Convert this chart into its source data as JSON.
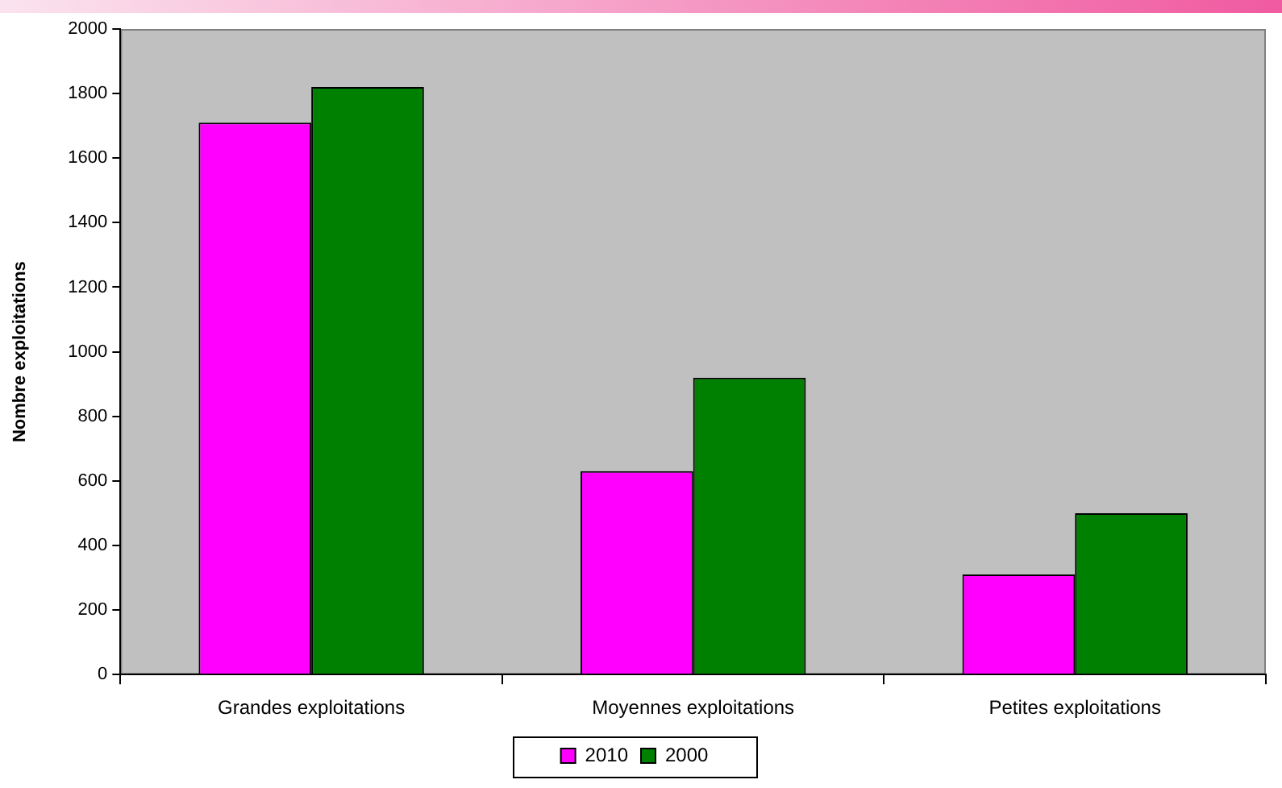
{
  "chart_data": {
    "type": "bar",
    "ylabel": "Nombre exploitations",
    "categories": [
      "Grandes exploitations",
      "Moyennes exploitations",
      "Petites exploitations"
    ],
    "series": [
      {
        "name": "2010",
        "color": "#ff00ff",
        "values": [
          1710,
          630,
          310
        ]
      },
      {
        "name": "2000",
        "color": "#008000",
        "values": [
          1820,
          920,
          500
        ]
      }
    ],
    "ylim": [
      0,
      2000
    ],
    "yticks": [
      0,
      200,
      400,
      600,
      800,
      1000,
      1200,
      1400,
      1600,
      1800,
      2000
    ],
    "grid": false,
    "legend": "bottom"
  }
}
